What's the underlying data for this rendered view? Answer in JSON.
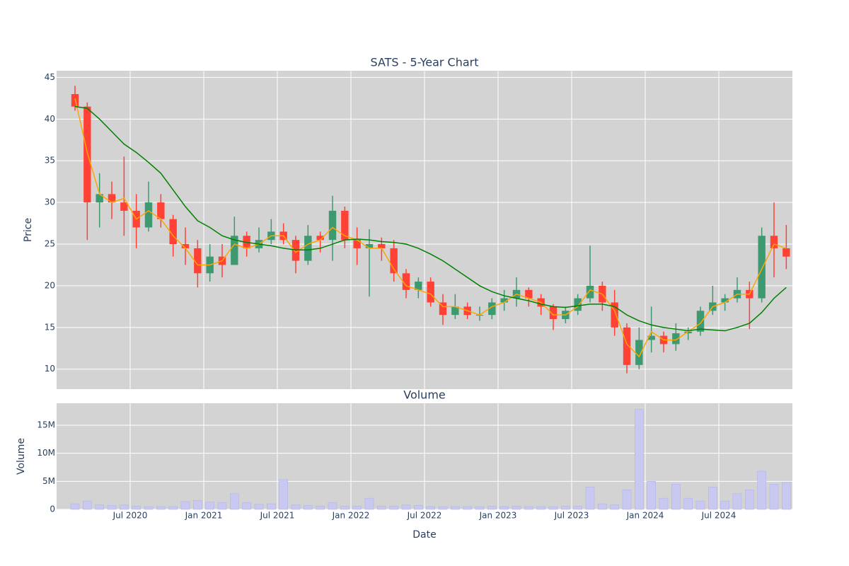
{
  "chart_data": [
    {
      "type": "candlestick",
      "title": "SATS - 5-Year Chart",
      "y_label": "Price",
      "increasing_color": "#3d9970",
      "decreasing_color": "#ff4136",
      "x": [
        "Feb 2020",
        "Mar 2020",
        "Apr 2020",
        "May 2020",
        "Jun 2020",
        "Jul 2020",
        "Aug 2020",
        "Sep 2020",
        "Oct 2020",
        "Nov 2020",
        "Dec 2020",
        "Jan 2021",
        "Feb 2021",
        "Mar 2021",
        "Apr 2021",
        "May 2021",
        "Jun 2021",
        "Jul 2021",
        "Aug 2021",
        "Sep 2021",
        "Oct 2021",
        "Nov 2021",
        "Dec 2021",
        "Jan 2022",
        "Feb 2022",
        "Mar 2022",
        "Apr 2022",
        "May 2022",
        "Jun 2022",
        "Jul 2022",
        "Aug 2022",
        "Sep 2022",
        "Oct 2022",
        "Nov 2022",
        "Dec 2022",
        "Jan 2023",
        "Feb 2023",
        "Mar 2023",
        "Apr 2023",
        "May 2023",
        "Jun 2023",
        "Jul 2023",
        "Aug 2023",
        "Sep 2023",
        "Oct 2023",
        "Nov 2023",
        "Dec 2023",
        "Jan 2024",
        "Feb 2024",
        "Mar 2024",
        "Apr 2024",
        "May 2024",
        "Jun 2024",
        "Jul 2024",
        "Aug 2024",
        "Sep 2024",
        "Oct 2024",
        "Nov 2024",
        "Dec 2024"
      ],
      "open": [
        43,
        41.5,
        30,
        31,
        30,
        29,
        27,
        30,
        28,
        25,
        24.5,
        21.5,
        23.5,
        22.5,
        26,
        24.5,
        25.5,
        26.5,
        25.5,
        23,
        26,
        25.5,
        29,
        25.5,
        24.5,
        25,
        24.5,
        21.5,
        19.5,
        20.5,
        18,
        16.5,
        17.5,
        16.5,
        16.5,
        18,
        18.5,
        19.5,
        18.5,
        17.5,
        16,
        17,
        18.5,
        20,
        18,
        15,
        10.5,
        13.5,
        14,
        13,
        14.3,
        14.5,
        17,
        18,
        18.5,
        19.5,
        18.5,
        26,
        24.5
      ],
      "high": [
        44,
        42,
        33.5,
        32.5,
        35.5,
        31,
        32.5,
        31,
        28.5,
        27,
        25.5,
        25,
        25,
        28.3,
        26.5,
        27,
        28,
        27.5,
        26,
        27.3,
        26.5,
        30.8,
        29.5,
        27,
        26.8,
        25.8,
        25.5,
        22,
        21,
        21,
        19,
        19,
        18,
        17.5,
        18.5,
        19.5,
        21,
        19.8,
        19,
        17.8,
        17.5,
        19,
        24.8,
        20.5,
        19.5,
        15.5,
        15,
        17.5,
        14.5,
        15.5,
        15,
        17.5,
        20,
        19,
        21,
        20.5,
        27,
        30,
        27.3
      ],
      "low": [
        41,
        25.5,
        27,
        28,
        26,
        24.5,
        26.5,
        27,
        23.5,
        22.5,
        19.8,
        20.5,
        21,
        22.5,
        23.5,
        24,
        25,
        25,
        21.5,
        22.5,
        24,
        23,
        24.5,
        22.5,
        18.7,
        23,
        20.5,
        18.5,
        18.5,
        17.5,
        15.3,
        16,
        16,
        15.8,
        16,
        17,
        17.5,
        17.5,
        16.5,
        14.7,
        15.5,
        16.5,
        18,
        17,
        14,
        9.5,
        10,
        12,
        12,
        12.2,
        13.5,
        14,
        16.5,
        17,
        18,
        14.8,
        18,
        21,
        22
      ],
      "close": [
        41.5,
        30,
        31,
        30,
        29,
        27,
        30,
        28,
        25,
        24.5,
        21.5,
        23.5,
        22.5,
        26,
        24.5,
        25.5,
        26.5,
        25.5,
        23,
        26,
        25.5,
        29,
        25.5,
        24.5,
        25,
        24.5,
        21.5,
        19.5,
        20.5,
        18,
        16.5,
        17.5,
        16.5,
        16.5,
        18,
        18.5,
        19.5,
        18.5,
        17.5,
        16,
        17,
        18.5,
        20,
        18,
        15,
        10.5,
        13.5,
        14,
        13,
        14.3,
        14.5,
        17,
        18,
        18.5,
        19.5,
        18.5,
        26,
        24.5,
        23.5
      ],
      "lines": [
        {
          "color": "#ffa500",
          "values": [
            42.5,
            36,
            31,
            30,
            30.5,
            28,
            29,
            28,
            26,
            24.5,
            22.5,
            22.5,
            23,
            25,
            24.5,
            25,
            26,
            26,
            24,
            25,
            25.5,
            27,
            26,
            25.5,
            24.5,
            24.5,
            22,
            20,
            19.5,
            19,
            17.5,
            17.5,
            17,
            16.5,
            17.5,
            18,
            19,
            18.5,
            18,
            16.5,
            16.5,
            17.5,
            19.5,
            19,
            17,
            13,
            11.5,
            14.5,
            13.5,
            13.5,
            14.5,
            15.5,
            17.5,
            18,
            19,
            19,
            22,
            25,
            24.5
          ]
        },
        {
          "color": "#008000",
          "values": [
            41.5,
            41.3,
            40,
            38.5,
            37,
            36,
            34.8,
            33.5,
            31.5,
            29.5,
            27.8,
            27,
            26,
            25.5,
            25.2,
            25,
            24.8,
            24.5,
            24.3,
            24.3,
            24.5,
            25,
            25.5,
            25.6,
            25.5,
            25.3,
            25.2,
            25,
            24.5,
            23.8,
            23,
            22,
            21,
            20,
            19.3,
            18.8,
            18.5,
            18.2,
            17.8,
            17.5,
            17.4,
            17.6,
            17.8,
            17.8,
            17.5,
            16.5,
            15.8,
            15.3,
            15,
            14.8,
            14.6,
            14.8,
            14.7,
            14.6,
            15,
            15.5,
            16.8,
            18.5,
            19.8
          ]
        }
      ],
      "xlim": [
        "Jan 2020",
        "Jan 2025"
      ],
      "ylim": [
        7.6,
        45.8
      ],
      "yticks": [
        10,
        15,
        20,
        25,
        30,
        35,
        40,
        45
      ],
      "grid": true
    },
    {
      "type": "bar",
      "title": "Volume",
      "x_label": "Date",
      "y_label": "Volume",
      "color": "#c8c8f0",
      "x": [
        "Feb 2020",
        "Mar 2020",
        "Apr 2020",
        "May 2020",
        "Jun 2020",
        "Jul 2020",
        "Aug 2020",
        "Sep 2020",
        "Oct 2020",
        "Nov 2020",
        "Dec 2020",
        "Jan 2021",
        "Feb 2021",
        "Mar 2021",
        "Apr 2021",
        "May 2021",
        "Jun 2021",
        "Jul 2021",
        "Aug 2021",
        "Sep 2021",
        "Oct 2021",
        "Nov 2021",
        "Dec 2021",
        "Jan 2022",
        "Feb 2022",
        "Mar 2022",
        "Apr 2022",
        "May 2022",
        "Jun 2022",
        "Jul 2022",
        "Aug 2022",
        "Sep 2022",
        "Oct 2022",
        "Nov 2022",
        "Dec 2022",
        "Jan 2023",
        "Feb 2023",
        "Mar 2023",
        "Apr 2023",
        "May 2023",
        "Jun 2023",
        "Jul 2023",
        "Aug 2023",
        "Sep 2023",
        "Oct 2023",
        "Nov 2023",
        "Dec 2023",
        "Jan 2024",
        "Feb 2024",
        "Mar 2024",
        "Apr 2024",
        "May 2024",
        "Jun 2024",
        "Jul 2024",
        "Aug 2024",
        "Sep 2024",
        "Oct 2024",
        "Nov 2024",
        "Dec 2024"
      ],
      "values": [
        1000000,
        1500000,
        800000,
        700000,
        800000,
        600000,
        500000,
        500000,
        500000,
        1400000,
        1600000,
        1300000,
        1200000,
        2800000,
        1200000,
        900000,
        1000000,
        5300000,
        800000,
        700000,
        600000,
        1200000,
        600000,
        600000,
        2000000,
        600000,
        600000,
        800000,
        700000,
        500000,
        500000,
        500000,
        500000,
        500000,
        600000,
        500000,
        600000,
        500000,
        500000,
        500000,
        600000,
        600000,
        4000000,
        1000000,
        800000,
        3500000,
        17800000,
        5000000,
        2000000,
        4500000,
        2000000,
        1500000,
        4000000,
        1500000,
        2800000,
        3500000,
        6800000,
        4500000,
        4800000
      ],
      "xlim": [
        "Jan 2020",
        "Jan 2025"
      ],
      "xticks": [
        "Jul 2020",
        "Jan 2021",
        "Jul 2021",
        "Jan 2022",
        "Jul 2022",
        "Jan 2023",
        "Jul 2023",
        "Jan 2024",
        "Jul 2024"
      ],
      "ylim": [
        0,
        18900000
      ],
      "yticks": [
        0,
        {
          "value": 5000000,
          "label": "5M"
        },
        {
          "value": 10000000,
          "label": "10M"
        },
        {
          "value": 15000000,
          "label": "15M"
        }
      ],
      "grid": true
    }
  ]
}
